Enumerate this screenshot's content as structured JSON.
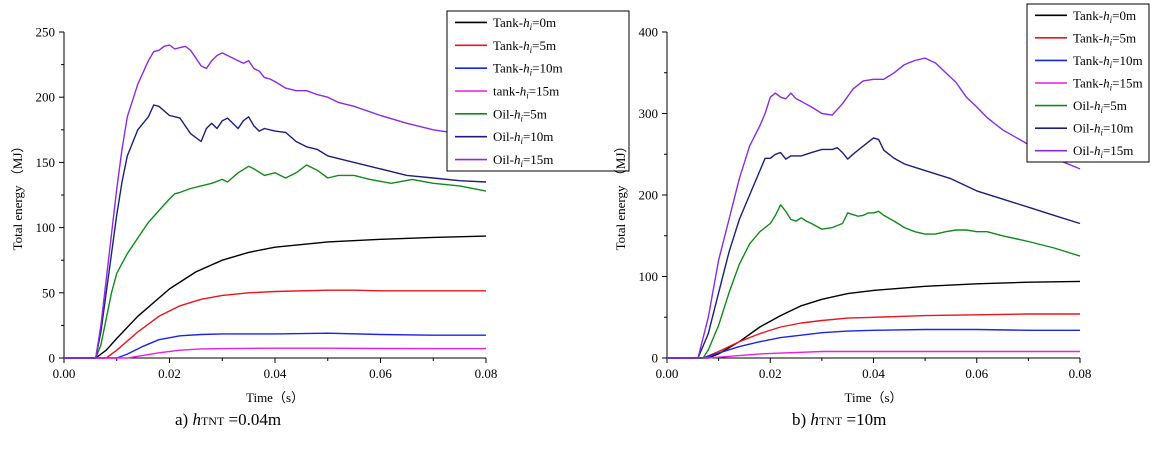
{
  "chart_data": [
    {
      "type": "line",
      "caption": {
        "label": "a) ",
        "var": "h",
        "sub": "TNT",
        "value": " =0.04m"
      },
      "xlabel": "Time（s）",
      "ylabel": "Total energy （MJ）",
      "xlim": [
        0,
        0.08
      ],
      "ylim": [
        0,
        250
      ],
      "xticks": [
        "0.00",
        "0.02",
        "0.04",
        "0.06",
        "0.08"
      ],
      "yticks": [
        "0",
        "50",
        "100",
        "150",
        "200",
        "250"
      ],
      "xtick_values": [
        0,
        0.02,
        0.04,
        0.06,
        0.08
      ],
      "ytick_values": [
        0,
        50,
        100,
        150,
        200,
        250
      ],
      "legend_position": "top-right",
      "series": [
        {
          "name_pre": "Tank-",
          "name_var": "h",
          "name_sub": "i",
          "name_post": "=0m",
          "color": "#000000",
          "x": [
            0,
            0.006,
            0.008,
            0.01,
            0.014,
            0.02,
            0.025,
            0.03,
            0.035,
            0.04,
            0.05,
            0.06,
            0.07,
            0.08
          ],
          "y": [
            0,
            0,
            6,
            15,
            32,
            53,
            66,
            75,
            81,
            85,
            89,
            91,
            92.5,
            93.5
          ]
        },
        {
          "name_pre": "Tank-",
          "name_var": "h",
          "name_sub": "i",
          "name_post": "=5m",
          "color": "#e8161c",
          "x": [
            0,
            0.008,
            0.01,
            0.014,
            0.018,
            0.022,
            0.026,
            0.03,
            0.035,
            0.04,
            0.05,
            0.055,
            0.06,
            0.07,
            0.08
          ],
          "y": [
            0,
            0,
            6,
            20,
            32,
            40,
            45,
            48,
            50,
            51,
            52,
            52,
            51.5,
            51.5,
            51.5
          ]
        },
        {
          "name_pre": "Tank-",
          "name_var": "h",
          "name_sub": "i",
          "name_post": "=10m",
          "color": "#1a25e6",
          "x": [
            0,
            0.01,
            0.012,
            0.015,
            0.018,
            0.022,
            0.026,
            0.03,
            0.04,
            0.05,
            0.06,
            0.07,
            0.08
          ],
          "y": [
            0,
            0,
            3,
            9,
            14,
            17,
            18,
            18.5,
            18.5,
            19,
            18,
            17.5,
            17.5
          ]
        },
        {
          "name_pre": "tank-",
          "name_var": "h",
          "name_sub": "i",
          "name_post": "=15m",
          "color": "#e91ee0",
          "x": [
            0,
            0.012,
            0.015,
            0.018,
            0.022,
            0.026,
            0.03,
            0.04,
            0.05,
            0.06,
            0.07,
            0.08
          ],
          "y": [
            0,
            0,
            2,
            4,
            6,
            7,
            7.2,
            7.5,
            7.5,
            7.3,
            7.2,
            7.2
          ]
        },
        {
          "name_pre": "Oil-",
          "name_var": "h",
          "name_sub": "i",
          "name_post": "=5m",
          "color": "#118a1b",
          "x": [
            0,
            0.006,
            0.007,
            0.008,
            0.009,
            0.01,
            0.012,
            0.014,
            0.016,
            0.018,
            0.02,
            0.021,
            0.022,
            0.024,
            0.026,
            0.028,
            0.03,
            0.031,
            0.033,
            0.035,
            0.036,
            0.038,
            0.04,
            0.042,
            0.044,
            0.046,
            0.048,
            0.05,
            0.052,
            0.055,
            0.058,
            0.062,
            0.066,
            0.07,
            0.075,
            0.08
          ],
          "y": [
            0,
            0,
            10,
            30,
            50,
            65,
            80,
            92,
            104,
            113,
            122,
            126,
            127,
            130,
            132,
            134,
            137,
            135,
            142,
            147,
            145,
            140,
            142,
            138,
            142,
            148,
            144,
            138,
            140,
            140,
            137,
            134,
            137,
            134,
            132,
            128
          ]
        },
        {
          "name_pre": "Oil-",
          "name_var": "h",
          "name_sub": "i",
          "name_post": "=10m",
          "color": "#1c1f7a",
          "x": [
            0,
            0.006,
            0.007,
            0.008,
            0.009,
            0.01,
            0.011,
            0.012,
            0.014,
            0.016,
            0.017,
            0.018,
            0.02,
            0.022,
            0.024,
            0.026,
            0.027,
            0.028,
            0.029,
            0.03,
            0.031,
            0.032,
            0.033,
            0.034,
            0.035,
            0.036,
            0.037,
            0.038,
            0.04,
            0.042,
            0.044,
            0.046,
            0.048,
            0.05,
            0.055,
            0.06,
            0.065,
            0.07,
            0.075,
            0.08
          ],
          "y": [
            0,
            0,
            20,
            50,
            80,
            110,
            135,
            155,
            175,
            185,
            194,
            193,
            186,
            184,
            172,
            166,
            176,
            180,
            176,
            182,
            184,
            180,
            176,
            182,
            185,
            178,
            174,
            176,
            174,
            173,
            166,
            162,
            160,
            155,
            150,
            145,
            140,
            138,
            136,
            135
          ]
        },
        {
          "name_pre": "Oil-",
          "name_var": "h",
          "name_sub": "i",
          "name_post": "=15m",
          "color": "#8a2be2",
          "x": [
            0,
            0.006,
            0.007,
            0.008,
            0.009,
            0.01,
            0.011,
            0.012,
            0.014,
            0.016,
            0.017,
            0.018,
            0.019,
            0.02,
            0.021,
            0.022,
            0.023,
            0.024,
            0.025,
            0.026,
            0.027,
            0.028,
            0.029,
            0.03,
            0.031,
            0.032,
            0.033,
            0.034,
            0.035,
            0.036,
            0.037,
            0.038,
            0.039,
            0.04,
            0.042,
            0.044,
            0.046,
            0.048,
            0.05,
            0.052,
            0.055,
            0.06,
            0.065,
            0.07,
            0.075,
            0.08
          ],
          "y": [
            0,
            0,
            25,
            60,
            95,
            130,
            160,
            185,
            210,
            228,
            235,
            236,
            239,
            240,
            237,
            238,
            239,
            236,
            230,
            224,
            222,
            228,
            232,
            234,
            232,
            230,
            228,
            226,
            228,
            222,
            220,
            215,
            214,
            212,
            207,
            205,
            205,
            202,
            200,
            196,
            193,
            186,
            180,
            175,
            172,
            171
          ]
        }
      ]
    },
    {
      "type": "line",
      "caption": {
        "label": "b) ",
        "var": "h",
        "sub": "TNT",
        "value": " =10m"
      },
      "xlabel": "Time（s）",
      "ylabel": "Total energy （MJ）",
      "xlim": [
        0,
        0.08
      ],
      "ylim": [
        0,
        400
      ],
      "xticks": [
        "0.00",
        "0.02",
        "0.04",
        "0.06",
        "0.08"
      ],
      "yticks": [
        "0",
        "100",
        "200",
        "300",
        "400"
      ],
      "xtick_values": [
        0,
        0.02,
        0.04,
        0.06,
        0.08
      ],
      "ytick_values": [
        0,
        100,
        200,
        300,
        400
      ],
      "legend_position": "top-right",
      "series": [
        {
          "name_pre": "Tank-",
          "name_var": "h",
          "name_sub": "i",
          "name_post": "=0m",
          "color": "#000000",
          "x": [
            0,
            0.008,
            0.01,
            0.014,
            0.018,
            0.022,
            0.026,
            0.03,
            0.035,
            0.04,
            0.05,
            0.06,
            0.07,
            0.08
          ],
          "y": [
            0,
            0,
            5,
            20,
            38,
            52,
            64,
            72,
            79,
            83,
            88,
            91,
            93,
            94
          ]
        },
        {
          "name_pre": "Tank-",
          "name_var": "h",
          "name_sub": "i",
          "name_post": "=5m",
          "color": "#e8161c",
          "x": [
            0,
            0.007,
            0.01,
            0.014,
            0.018,
            0.022,
            0.026,
            0.03,
            0.035,
            0.04,
            0.05,
            0.06,
            0.07,
            0.08
          ],
          "y": [
            0,
            0,
            8,
            20,
            30,
            38,
            43,
            46,
            49,
            50,
            52,
            53,
            54,
            54
          ]
        },
        {
          "name_pre": "Tank-",
          "name_var": "h",
          "name_sub": "i",
          "name_post": "=10m",
          "color": "#1a25e6",
          "x": [
            0,
            0.007,
            0.01,
            0.014,
            0.018,
            0.022,
            0.026,
            0.03,
            0.035,
            0.04,
            0.05,
            0.06,
            0.07,
            0.08
          ],
          "y": [
            0,
            0,
            6,
            14,
            20,
            25,
            28,
            31,
            33,
            34,
            35,
            35,
            34,
            34
          ]
        },
        {
          "name_pre": "Tank-",
          "name_var": "h",
          "name_sub": "i",
          "name_post": "=15m",
          "color": "#e91ee0",
          "x": [
            0,
            0.008,
            0.01,
            0.014,
            0.018,
            0.022,
            0.026,
            0.03,
            0.04,
            0.05,
            0.06,
            0.07,
            0.08
          ],
          "y": [
            0,
            0,
            1,
            3,
            5,
            6,
            7,
            8,
            8,
            8,
            8,
            8,
            8
          ]
        },
        {
          "name_pre": "Oil-",
          "name_var": "h",
          "name_sub": "i",
          "name_post": "=5m",
          "color": "#118a1b",
          "x": [
            0,
            0.007,
            0.008,
            0.01,
            0.012,
            0.014,
            0.016,
            0.018,
            0.02,
            0.021,
            0.022,
            0.023,
            0.024,
            0.025,
            0.026,
            0.027,
            0.028,
            0.03,
            0.032,
            0.034,
            0.035,
            0.036,
            0.037,
            0.038,
            0.039,
            0.04,
            0.041,
            0.042,
            0.044,
            0.046,
            0.048,
            0.05,
            0.052,
            0.054,
            0.056,
            0.058,
            0.06,
            0.062,
            0.065,
            0.07,
            0.075,
            0.08
          ],
          "y": [
            0,
            0,
            10,
            40,
            80,
            115,
            140,
            155,
            165,
            175,
            188,
            180,
            170,
            168,
            172,
            168,
            165,
            158,
            160,
            165,
            178,
            176,
            174,
            175,
            178,
            178,
            180,
            175,
            168,
            160,
            155,
            152,
            152,
            155,
            157,
            157,
            155,
            155,
            150,
            143,
            135,
            125
          ]
        },
        {
          "name_pre": "Oil-",
          "name_var": "h",
          "name_sub": "i",
          "name_post": "=10m",
          "color": "#1c1f7a",
          "x": [
            0,
            0.006,
            0.008,
            0.01,
            0.012,
            0.014,
            0.016,
            0.018,
            0.019,
            0.02,
            0.021,
            0.022,
            0.023,
            0.024,
            0.026,
            0.028,
            0.03,
            0.032,
            0.033,
            0.034,
            0.035,
            0.036,
            0.038,
            0.04,
            0.041,
            0.042,
            0.044,
            0.046,
            0.048,
            0.05,
            0.055,
            0.06,
            0.065,
            0.07,
            0.075,
            0.08
          ],
          "y": [
            0,
            0,
            30,
            80,
            130,
            170,
            200,
            230,
            245,
            245,
            250,
            252,
            244,
            248,
            248,
            252,
            256,
            256,
            258,
            252,
            244,
            250,
            260,
            270,
            268,
            255,
            245,
            238,
            234,
            230,
            220,
            205,
            195,
            185,
            175,
            165
          ]
        },
        {
          "name_pre": "Oil-",
          "name_var": "h",
          "name_sub": "i",
          "name_post": "=15m",
          "color": "#8a2be2",
          "x": [
            0,
            0.006,
            0.008,
            0.01,
            0.012,
            0.014,
            0.016,
            0.018,
            0.019,
            0.02,
            0.021,
            0.022,
            0.023,
            0.024,
            0.025,
            0.026,
            0.028,
            0.03,
            0.032,
            0.034,
            0.036,
            0.038,
            0.04,
            0.042,
            0.044,
            0.046,
            0.048,
            0.05,
            0.052,
            0.054,
            0.056,
            0.058,
            0.06,
            0.062,
            0.065,
            0.07,
            0.075,
            0.08
          ],
          "y": [
            0,
            0,
            50,
            120,
            170,
            220,
            260,
            285,
            300,
            320,
            325,
            320,
            318,
            325,
            318,
            315,
            308,
            300,
            298,
            312,
            330,
            340,
            342,
            342,
            350,
            360,
            365,
            368,
            362,
            350,
            338,
            320,
            308,
            295,
            280,
            262,
            245,
            232
          ]
        }
      ]
    }
  ]
}
